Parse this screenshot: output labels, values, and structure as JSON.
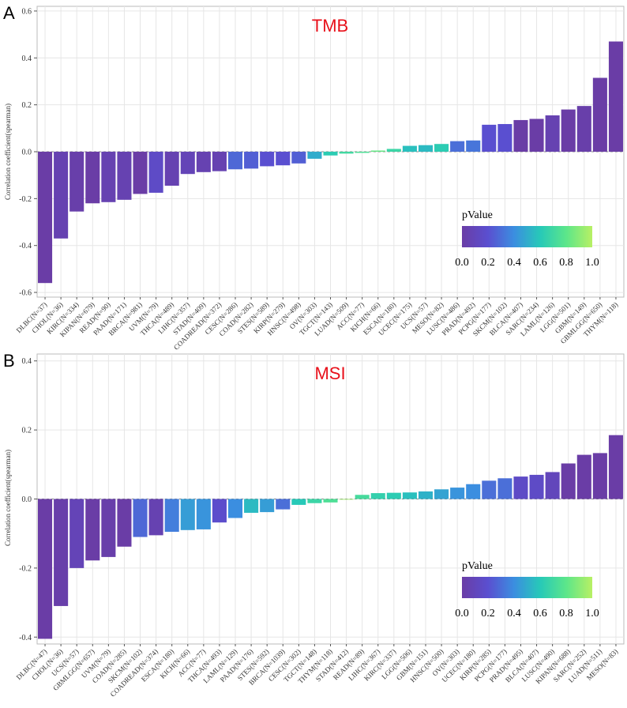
{
  "chart_data": [
    {
      "panel": "A",
      "type": "bar",
      "title": "TMB",
      "ylabel": "Correlation coefficient(spearman)",
      "xlabel": "",
      "ylim": [
        -0.62,
        0.62
      ],
      "yticks": [
        "0.6",
        "0.4",
        "0.2",
        "0.0",
        "-0.2",
        "-0.4",
        "-0.6"
      ],
      "ytick_values": [
        0.6,
        0.4,
        0.2,
        0.0,
        -0.2,
        -0.4,
        -0.6
      ],
      "categories": [
        "DLBC(N=37)",
        "CHOL(N=36)",
        "KIRC(N=334)",
        "KIPAN(N=679)",
        "READ(N=90)",
        "PAAD(N=171)",
        "BRCA(N=981)",
        "UVM(N=79)",
        "THCA(N=489)",
        "LIHC(N=357)",
        "STAD(N=409)",
        "COADREAD(N=372)",
        "CESC(N=286)",
        "COAD(N=282)",
        "STES(N=589)",
        "KIRP(N=279)",
        "HNSC(N=498)",
        "OV(N=303)",
        "TGCT(N=143)",
        "LUAD(N=509)",
        "ACC(N=77)",
        "KICH(N=66)",
        "ESCA(N=180)",
        "UCEC(N=175)",
        "UCS(N=57)",
        "MESO(N=82)",
        "LUSC(N=486)",
        "PRAD(N=492)",
        "PCPG(N=177)",
        "SKCM(N=102)",
        "BLCA(N=407)",
        "SARC(N=234)",
        "LAML(N=126)",
        "LGG(N=501)",
        "GBM(N=149)",
        "GBMLGG(N=650)",
        "THYM(N=118)"
      ],
      "values": [
        -0.56,
        -0.37,
        -0.255,
        -0.22,
        -0.215,
        -0.205,
        -0.18,
        -0.175,
        -0.145,
        -0.095,
        -0.087,
        -0.083,
        -0.075,
        -0.072,
        -0.062,
        -0.058,
        -0.05,
        -0.03,
        -0.016,
        -0.008,
        -0.005,
        0.005,
        0.012,
        0.025,
        0.028,
        0.033,
        0.045,
        0.048,
        0.115,
        0.118,
        0.135,
        0.14,
        0.155,
        0.18,
        0.195,
        0.315,
        0.47
      ],
      "pvalues": [
        0.0,
        0.05,
        0.02,
        0.0,
        0.05,
        0.05,
        0.0,
        0.15,
        0.05,
        0.08,
        0.05,
        0.05,
        0.28,
        0.25,
        0.2,
        0.2,
        0.25,
        0.5,
        0.62,
        0.7,
        0.75,
        0.82,
        0.68,
        0.57,
        0.55,
        0.62,
        0.3,
        0.32,
        0.2,
        0.2,
        0.0,
        0.0,
        0.05,
        0.0,
        0.02,
        0.0,
        0.0
      ],
      "legend": {
        "title": "pValue",
        "ticks": [
          "0.0",
          "0.2",
          "0.4",
          "0.6",
          "0.8",
          "1.0"
        ],
        "placement": "bottom-right"
      }
    },
    {
      "panel": "B",
      "type": "bar",
      "title": "MSI",
      "ylabel": "Correlation coefficient(spearman)",
      "xlabel": "",
      "ylim": [
        -0.42,
        0.42
      ],
      "yticks": [
        "0.4",
        "0.2",
        "0.0",
        "-0.2",
        "-0.4"
      ],
      "ytick_values": [
        0.4,
        0.2,
        0.0,
        -0.2,
        -0.4
      ],
      "categories": [
        "DLBC(N=47)",
        "CHOL(N=36)",
        "UCS(N=57)",
        "GBMLGG(N=657)",
        "UVM(N=79)",
        "COAD(N=285)",
        "SKCM(N=102)",
        "COADREAD(N=374)",
        "ESCA(N=180)",
        "KICH(N=66)",
        "ACC(N=77)",
        "THCA(N=493)",
        "LAML(N=129)",
        "PAAD(N=176)",
        "STES(N=592)",
        "BRCA(N=1039)",
        "CESC(N=302)",
        "TGCT(N=148)",
        "THYM(N=118)",
        "STAD(N=412)",
        "READ(N=89)",
        "LIHC(N=367)",
        "KIRC(N=337)",
        "LGG(N=506)",
        "GBM(N=151)",
        "HNSC(N=500)",
        "OV(N=303)",
        "UCEC(N=180)",
        "KIRP(N=285)",
        "PCPG(N=177)",
        "PRAD(N=495)",
        "BLCA(N=407)",
        "LUSC(N=490)",
        "KIPAN(N=688)",
        "SARC(N=252)",
        "LUAD(N=511)",
        "MESO(N=83)"
      ],
      "values": [
        -0.405,
        -0.31,
        -0.2,
        -0.178,
        -0.168,
        -0.138,
        -0.11,
        -0.105,
        -0.095,
        -0.09,
        -0.088,
        -0.068,
        -0.055,
        -0.04,
        -0.038,
        -0.03,
        -0.017,
        -0.012,
        -0.01,
        -0.002,
        0.012,
        0.017,
        0.018,
        0.019,
        0.022,
        0.028,
        0.033,
        0.043,
        0.053,
        0.06,
        0.065,
        0.07,
        0.078,
        0.103,
        0.128,
        0.133,
        0.185
      ],
      "pvalues": [
        0.0,
        0.02,
        0.08,
        0.0,
        0.02,
        0.0,
        0.28,
        0.05,
        0.35,
        0.45,
        0.42,
        0.18,
        0.4,
        0.55,
        0.45,
        0.3,
        0.6,
        0.68,
        0.75,
        0.95,
        0.72,
        0.65,
        0.62,
        0.57,
        0.52,
        0.47,
        0.42,
        0.4,
        0.3,
        0.3,
        0.15,
        0.15,
        0.1,
        0.0,
        0.0,
        0.0,
        0.0
      ],
      "legend": {
        "title": "pValue",
        "ticks": [
          "0.0",
          "0.2",
          "0.4",
          "0.6",
          "0.8",
          "1.0"
        ],
        "placement": "bottom-right"
      }
    }
  ]
}
